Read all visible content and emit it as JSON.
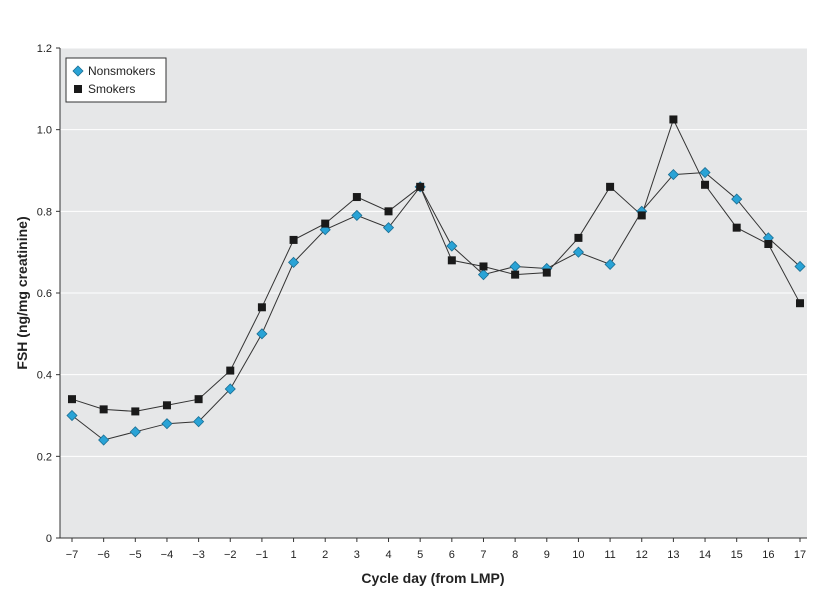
{
  "chart_data": {
    "type": "line",
    "xlabel": "Cycle day (from LMP)",
    "ylabel": "FSH (ng/mg creatinine)",
    "x": [
      "−7",
      "−6",
      "−5",
      "−4",
      "−3",
      "−2",
      "−1",
      "1",
      "2",
      "3",
      "4",
      "5",
      "6",
      "7",
      "8",
      "9",
      "10",
      "11",
      "12",
      "13",
      "14",
      "15",
      "16",
      "17"
    ],
    "ylim": [
      0,
      1.2
    ],
    "yticks": [
      "0",
      "0.2",
      "0.4",
      "0.6",
      "0.8",
      "1.0",
      "1.2"
    ],
    "ytick_values": [
      0,
      0.2,
      0.4,
      0.6,
      0.8,
      1.0,
      1.2
    ],
    "grid": true,
    "legend_position": "top-left",
    "series": [
      {
        "name": "Nonsmokers",
        "marker": "diamond",
        "color": "#29a3d6",
        "values": [
          0.3,
          0.24,
          0.26,
          0.28,
          0.285,
          0.365,
          0.5,
          0.675,
          0.755,
          0.79,
          0.76,
          0.86,
          0.715,
          0.645,
          0.665,
          0.66,
          0.7,
          0.67,
          0.8,
          0.89,
          0.895,
          0.83,
          0.735,
          0.665
        ]
      },
      {
        "name": "Smokers",
        "marker": "square",
        "color": "#1a1a1a",
        "values": [
          0.34,
          0.315,
          0.31,
          0.325,
          0.34,
          0.41,
          0.565,
          0.73,
          0.77,
          0.835,
          0.8,
          0.86,
          0.68,
          0.665,
          0.645,
          0.65,
          0.735,
          0.86,
          0.79,
          1.025,
          0.865,
          0.76,
          0.72,
          0.575
        ]
      }
    ]
  }
}
